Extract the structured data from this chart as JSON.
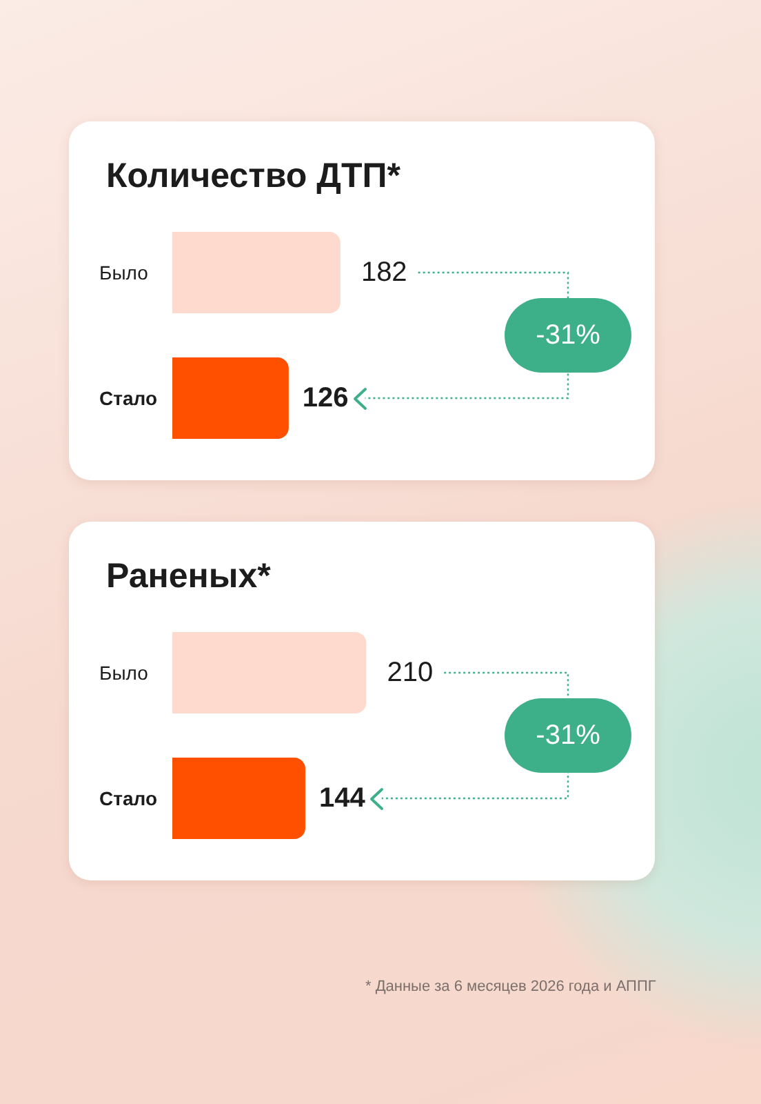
{
  "chart_data": [
    {
      "type": "bar",
      "orientation": "horizontal",
      "title": "Количество ДТП*",
      "categories": [
        "Было",
        "Стало"
      ],
      "values": [
        182,
        126
      ],
      "colors": [
        "#fddacd",
        "#ff5000"
      ],
      "data_labels": true,
      "annotations": [
        "-31%"
      ]
    },
    {
      "type": "bar",
      "orientation": "horizontal",
      "title": "Раненых*",
      "categories": [
        "Было",
        "Стало"
      ],
      "values": [
        210,
        144
      ],
      "colors": [
        "#fddacd",
        "#ff5000"
      ],
      "data_labels": true,
      "annotations": [
        "-31%",
        "* Данные за 6 месяцев 2026 года и АППГ"
      ]
    }
  ]
}
